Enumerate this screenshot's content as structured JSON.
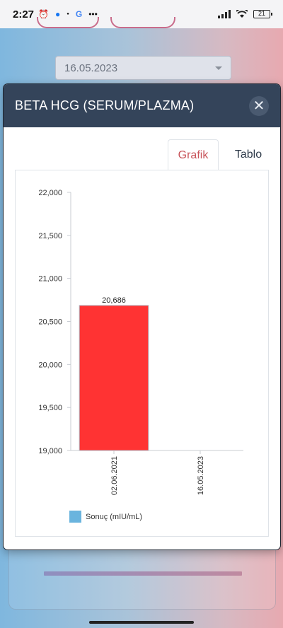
{
  "status_bar": {
    "time": "2:27",
    "icons_left": [
      "alarm-icon",
      "messenger-icon",
      "dot-icon",
      "google-icon",
      "more-icon"
    ],
    "icons_right": [
      "signal-icon",
      "wifi-icon",
      "battery-icon"
    ],
    "battery_level": "21"
  },
  "background": {
    "date_select_value": "16.05.2023"
  },
  "modal": {
    "title": "BETA HCG (SERUM/PLAZMA)",
    "close_label": "✕",
    "tabs": [
      {
        "label": "Grafik",
        "active": true
      },
      {
        "label": "Tablo",
        "active": false
      }
    ]
  },
  "chart_data": {
    "type": "bar",
    "categories": [
      "02.06.2021",
      "16.05.2023"
    ],
    "series": [
      {
        "name": "Sonuç (mIU/mL)",
        "values": [
          20686,
          null
        ],
        "color": "#ff3333"
      }
    ],
    "data_labels": [
      "20,686",
      ""
    ],
    "y_ticks": [
      "22,000",
      "21,500",
      "21,000",
      "20,500",
      "20,000",
      "19,500",
      "19,000"
    ],
    "ylim": [
      19000,
      22000
    ],
    "legend_swatch_color": "#6ab4de",
    "legend_position": "bottom-left",
    "grid": false
  }
}
